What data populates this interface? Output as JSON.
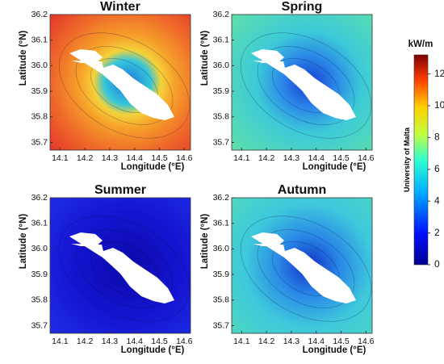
{
  "panels": [
    {
      "title": "Winter",
      "xlabel": "Longitude (°E)",
      "ylabel": "Latitude (°N)",
      "xlim": [
        14.06,
        14.625
      ],
      "ylim": [
        35.67,
        36.2
      ],
      "xticks": [
        14.1,
        14.2,
        14.3,
        14.4,
        14.5,
        14.6
      ],
      "yticks": [
        35.7,
        35.8,
        35.9,
        36.0,
        36.1,
        36.2
      ]
    },
    {
      "title": "Spring",
      "xlabel": "Longitude (°E)",
      "ylabel": "Latitude (°N)",
      "xlim": [
        14.06,
        14.625
      ],
      "ylim": [
        35.67,
        36.2
      ],
      "xticks": [
        14.1,
        14.2,
        14.3,
        14.4,
        14.5,
        14.6
      ],
      "yticks": [
        35.7,
        35.8,
        35.9,
        36.0,
        36.1,
        36.2
      ]
    },
    {
      "title": "Summer",
      "xlabel": "Longitude (°E)",
      "ylabel": "Latitude (°N)",
      "xlim": [
        14.06,
        14.625
      ],
      "ylim": [
        35.67,
        36.2
      ],
      "xticks": [
        14.1,
        14.2,
        14.3,
        14.4,
        14.5,
        14.6
      ],
      "yticks": [
        35.7,
        35.8,
        35.9,
        36.0,
        36.1,
        36.2
      ]
    },
    {
      "title": "Autumn",
      "xlabel": "Longitude (°E)",
      "ylabel": "Latitude (°N)",
      "xlim": [
        14.06,
        14.625
      ],
      "ylim": [
        35.67,
        36.2
      ],
      "xticks": [
        14.1,
        14.2,
        14.3,
        14.4,
        14.5,
        14.6
      ],
      "yticks": [
        35.7,
        35.8,
        35.9,
        36.0,
        36.1,
        36.2
      ]
    }
  ],
  "colorbar": {
    "label": "kW/m",
    "source": "University of Malta",
    "lim": [
      0,
      13.2
    ],
    "ticks": [
      0,
      2,
      4,
      6,
      8,
      10,
      12
    ]
  }
}
